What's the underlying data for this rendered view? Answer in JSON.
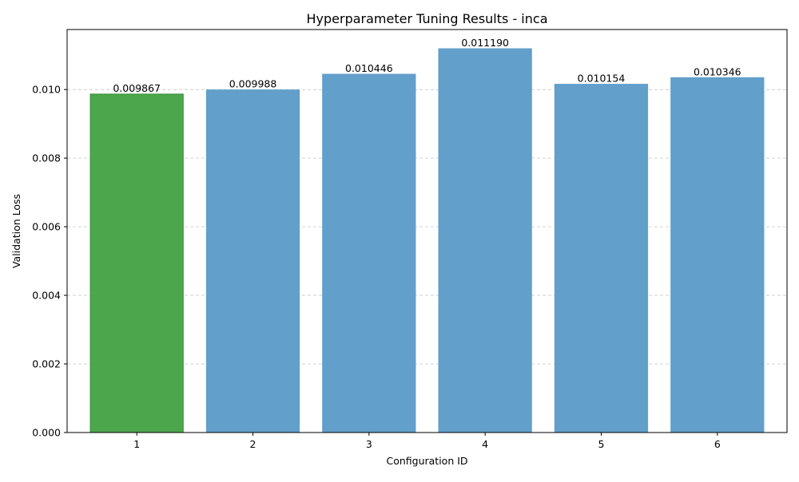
{
  "chart_data": {
    "type": "bar",
    "title": "Hyperparameter Tuning Results - inca",
    "xlabel": "Configuration ID",
    "ylabel": "Validation Loss",
    "categories": [
      "1",
      "2",
      "3",
      "4",
      "5",
      "6"
    ],
    "values": [
      0.009867,
      0.009988,
      0.010446,
      0.01119,
      0.010154,
      0.010346
    ],
    "data_labels": [
      "0.009867",
      "0.009988",
      "0.010446",
      "0.011190",
      "0.010154",
      "0.010346"
    ],
    "bar_colors": [
      "#4CA64C",
      "#629FCA",
      "#629FCA",
      "#629FCA",
      "#629FCA",
      "#629FCA"
    ],
    "bar_edge_colors": [
      "#3a8f3a",
      "#629FCA",
      "#629FCA",
      "#629FCA",
      "#629FCA",
      "#629FCA"
    ],
    "ylim": [
      0,
      0.011749
    ],
    "y_ticks": [
      0.0,
      0.002,
      0.004,
      0.006,
      0.008,
      0.01
    ],
    "y_tick_labels": [
      "0.000",
      "0.002",
      "0.004",
      "0.006",
      "0.008",
      "0.010"
    ],
    "grid": "y-axis dashed",
    "legend": "none"
  }
}
